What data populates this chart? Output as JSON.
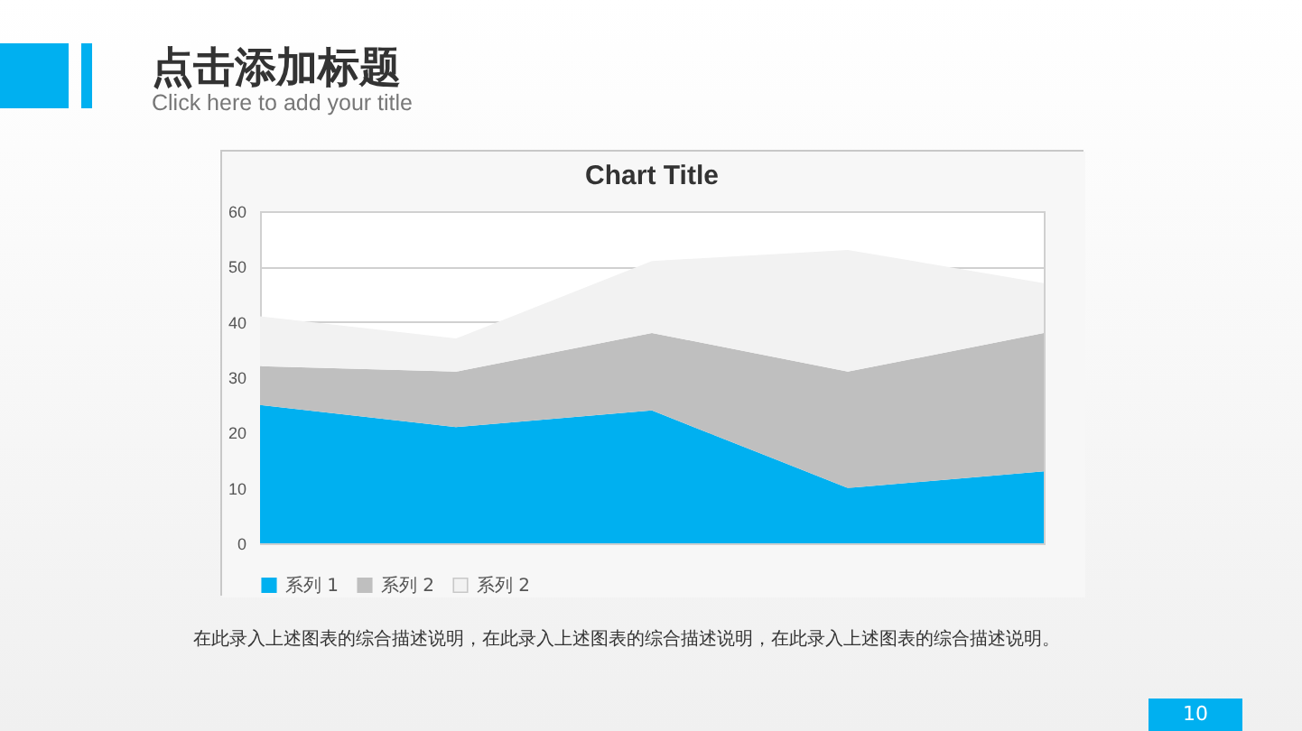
{
  "chart_data": {
    "type": "area",
    "stacked": true,
    "title": "Chart Title",
    "annotations": [
      "点击添加标题",
      "Click here to add your title",
      "在此录入上述图表的综合描述说明，在此录入上述图表的综合描述说明，在此录入上述图表的综合描述说明。",
      "10"
    ],
    "categories": [
      null,
      null,
      null,
      null,
      null
    ],
    "series": [
      {
        "name": "系列 1",
        "color": "#00b0f0",
        "values": [
          25,
          21,
          24,
          10,
          13
        ]
      },
      {
        "name": "系列 2",
        "color": "#bfbfbf",
        "values": [
          7,
          10,
          14,
          21,
          25
        ]
      },
      {
        "name": "系列 2",
        "color": "#f2f2f2",
        "values": [
          9,
          6,
          13,
          22,
          9
        ]
      }
    ],
    "ylim": [
      0,
      60
    ],
    "yticks": [
      0,
      10,
      20,
      30,
      40,
      50,
      60
    ],
    "grid": "y",
    "legend": "bottom",
    "tick_labels": "y"
  }
}
